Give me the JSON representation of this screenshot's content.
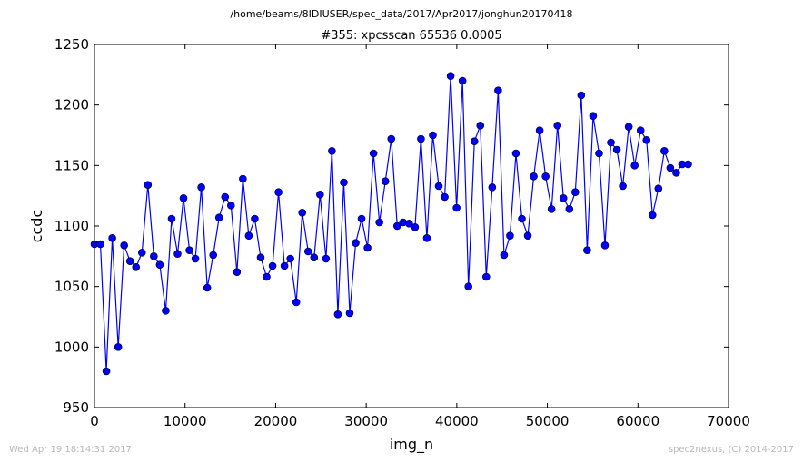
{
  "supertitle": "/home/beams/8IDIUSER/spec_data/2017/Apr2017/jonghun20170418",
  "footer": {
    "timestamp": "Wed Apr 19 18:14:31 2017",
    "credit": "spec2nexus, (C) 2014-2017"
  },
  "chart_data": {
    "type": "line",
    "title": "#355: xpcsscan 65536 0.0005",
    "xlabel": "img_n",
    "ylabel": "ccdc",
    "xlim": [
      0,
      70000
    ],
    "ylim": [
      950,
      1250
    ],
    "xticks": [
      0,
      10000,
      20000,
      30000,
      40000,
      50000,
      60000,
      70000
    ],
    "yticks": [
      950,
      1000,
      1050,
      1100,
      1150,
      1200,
      1250
    ],
    "grid": false,
    "color": "#0000ff",
    "series": [
      {
        "x": [
          0,
          655,
          1311,
          1966,
          2621,
          3277,
          3932,
          4587,
          5243,
          5898,
          6554,
          7209,
          7864,
          8520,
          9175,
          9830,
          10486,
          11141,
          11796,
          12452,
          13107,
          13762,
          14418,
          15073,
          15729,
          16384,
          17039,
          17695,
          18350,
          19005,
          19661,
          20316,
          20972,
          21627,
          22282,
          22938,
          23593,
          24248,
          24904,
          25559,
          26214,
          26870,
          27525,
          28180,
          28836,
          29491,
          30147,
          30802,
          31457,
          32113,
          32768,
          33423,
          34079,
          34734,
          35389,
          36045,
          36700,
          37356,
          38011,
          38666,
          39322,
          39977,
          40632,
          41288,
          41943,
          42598,
          43254,
          43909,
          44565,
          45220,
          45875,
          46531,
          47186,
          47841,
          48497,
          49152,
          49807,
          50463,
          51118,
          51773,
          52429,
          53084,
          53740,
          54395,
          55050,
          55706,
          56361,
          57016,
          57672,
          58327,
          58982,
          59638,
          60293,
          60949,
          61604,
          62259,
          62915,
          63570,
          64225,
          64881,
          65536
        ],
        "y": [
          1085,
          1085,
          980,
          1090,
          1000,
          1084,
          1071,
          1066,
          1078,
          1134,
          1075,
          1068,
          1030,
          1106,
          1077,
          1123,
          1080,
          1073,
          1132,
          1049,
          1076,
          1107,
          1124,
          1117,
          1062,
          1139,
          1092,
          1106,
          1074,
          1058,
          1067,
          1128,
          1067,
          1073,
          1037,
          1111,
          1079,
          1074,
          1126,
          1073,
          1162,
          1027,
          1136,
          1028,
          1086,
          1106,
          1082,
          1160,
          1103,
          1137,
          1172,
          1100,
          1103,
          1102,
          1099,
          1172,
          1090,
          1175,
          1133,
          1124,
          1224,
          1115,
          1220,
          1050,
          1170,
          1183,
          1058,
          1132,
          1212,
          1076,
          1092,
          1160,
          1106,
          1092,
          1141,
          1179,
          1141,
          1114,
          1183,
          1123,
          1114,
          1128,
          1208,
          1080,
          1191,
          1160,
          1084,
          1169,
          1163,
          1133,
          1182,
          1150,
          1179,
          1171,
          1109,
          1131,
          1162,
          1148,
          1144,
          1151,
          1151
        ]
      }
    ]
  }
}
